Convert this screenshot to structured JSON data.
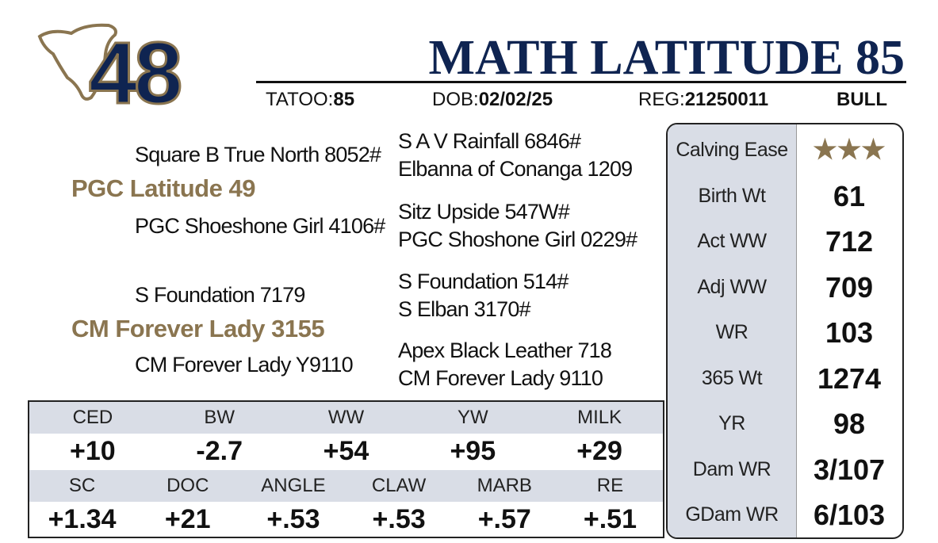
{
  "header": {
    "lot": "48",
    "name": "MATH LATITUDE 85",
    "tatoo_label": "TATOO:",
    "tatoo": "85",
    "dob_label": "DOB:",
    "dob": "02/02/25",
    "reg_label": "REG:",
    "reg": "21250011",
    "sex": "BULL"
  },
  "pedigree": {
    "sire": "PGC Latitude 49",
    "sire_sire": "Square B True North 8052#",
    "sire_dam": "PGC Shoeshone Girl 4106#",
    "sire_sire_sire": "S A V Rainfall 6846#",
    "sire_sire_dam": "Elbanna of Conanga 1209",
    "sire_dam_sire": "Sitz Upside 547W#",
    "sire_dam_dam": "PGC Shoshone Girl 0229#",
    "dam": "CM Forever Lady 3155",
    "dam_sire": "S Foundation 7179",
    "dam_dam": "CM Forever Lady Y9110",
    "dam_sire_sire": "S Foundation 514#",
    "dam_sire_dam": "S Elban 3170#",
    "dam_dam_sire": "Apex Black Leather 718",
    "dam_dam_dam": "CM Forever Lady 9110"
  },
  "epds": [
    [
      {
        "label": "CED",
        "value": "+10"
      },
      {
        "label": "BW",
        "value": "-2.7"
      },
      {
        "label": "WW",
        "value": "+54"
      },
      {
        "label": "YW",
        "value": "+95"
      },
      {
        "label": "MILK",
        "value": "+29"
      }
    ],
    [
      {
        "label": "SC",
        "value": "+1.34"
      },
      {
        "label": "DOC",
        "value": "+21"
      },
      {
        "label": "ANGLE",
        "value": "+.53"
      },
      {
        "label": "CLAW",
        "value": "+.53"
      },
      {
        "label": "MARB",
        "value": "+.57"
      },
      {
        "label": "RE",
        "value": "+.51"
      }
    ]
  ],
  "performance": [
    {
      "label": "Calving Ease",
      "value": "★★★"
    },
    {
      "label": "Birth Wt",
      "value": "61"
    },
    {
      "label": "Act WW",
      "value": "712"
    },
    {
      "label": "Adj WW",
      "value": "709"
    },
    {
      "label": "WR",
      "value": "103"
    },
    {
      "label": "365 Wt",
      "value": "1274"
    },
    {
      "label": "YR",
      "value": "98"
    },
    {
      "label": "Dam WR",
      "value": "3/107"
    },
    {
      "label": "GDam WR",
      "value": "6/103"
    }
  ]
}
